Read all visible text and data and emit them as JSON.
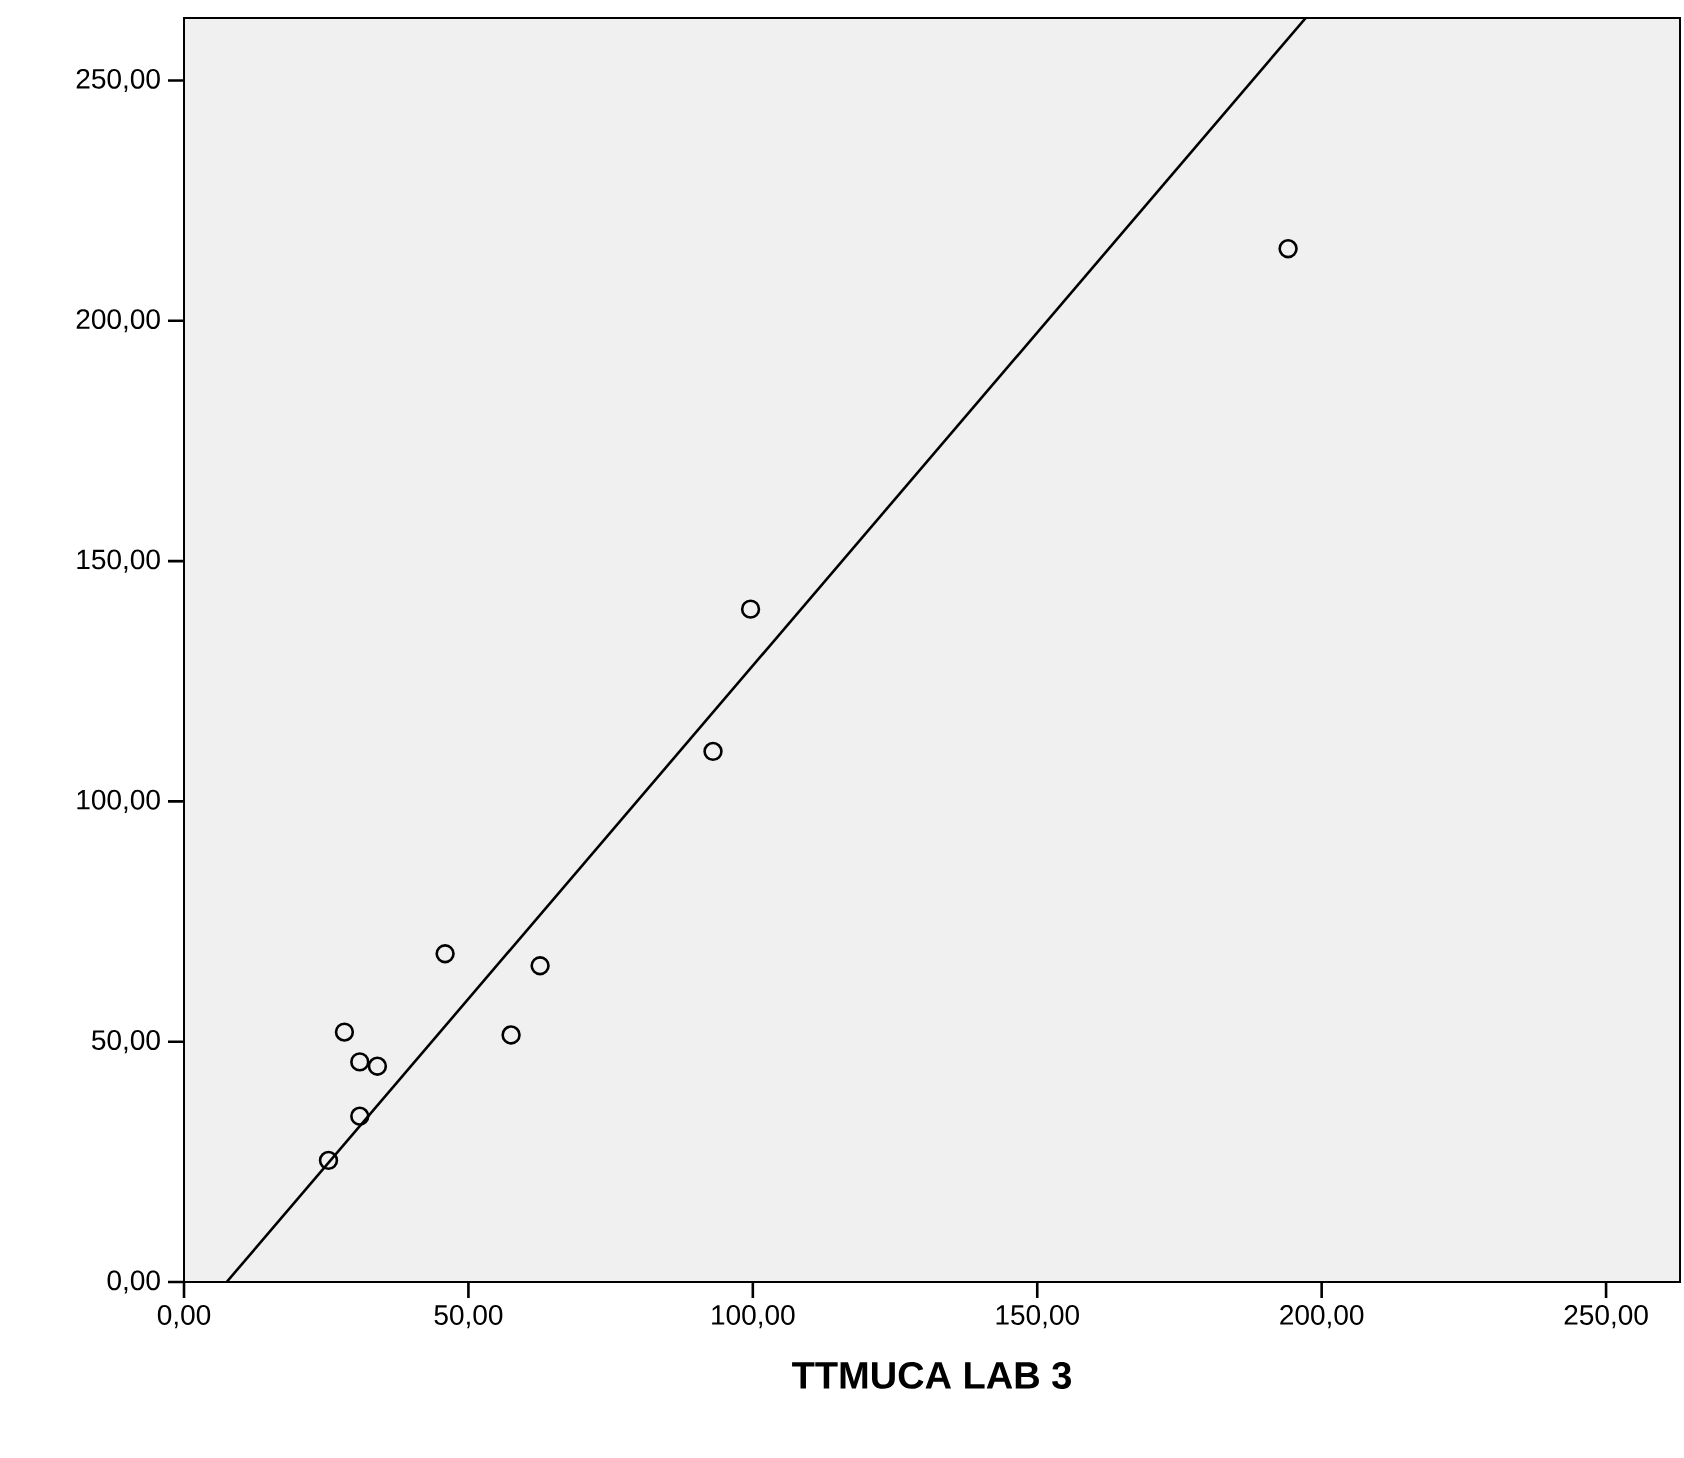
{
  "chart_data": {
    "type": "scatter",
    "xlabel": "TTMUCA LAB 3",
    "xlim": [
      0,
      263
    ],
    "ylim": [
      0,
      263
    ],
    "xticks": [
      {
        "value": 0,
        "label": "0,00"
      },
      {
        "value": 50,
        "label": "50,00"
      },
      {
        "value": 100,
        "label": "100,00"
      },
      {
        "value": 150,
        "label": "150,00"
      },
      {
        "value": 200,
        "label": "200,00"
      },
      {
        "value": 250,
        "label": "250,00"
      }
    ],
    "yticks": [
      {
        "value": 0,
        "label": "0,00"
      },
      {
        "value": 50,
        "label": "50,00"
      },
      {
        "value": 100,
        "label": "100,00"
      },
      {
        "value": 150,
        "label": "150,00"
      },
      {
        "value": 200,
        "label": "200,00"
      },
      {
        "value": 250,
        "label": "250,00"
      }
    ],
    "grid": false,
    "series": [
      {
        "marker": "circle",
        "color": "#000000",
        "x": [
          25.4,
          30.9,
          28.2,
          30.9,
          34.0,
          45.9,
          57.5,
          62.6,
          93.0,
          99.6,
          194.1
        ],
        "values": [
          25.3,
          34.5,
          52.0,
          45.8,
          44.9,
          68.3,
          51.4,
          65.8,
          110.4,
          140.0,
          215.0
        ]
      },
      {
        "type": "line",
        "marker": "none",
        "line_style": "solid",
        "color": "#000000",
        "x": [
          7.5,
          197.2
        ],
        "values": [
          0,
          263
        ]
      }
    ]
  }
}
